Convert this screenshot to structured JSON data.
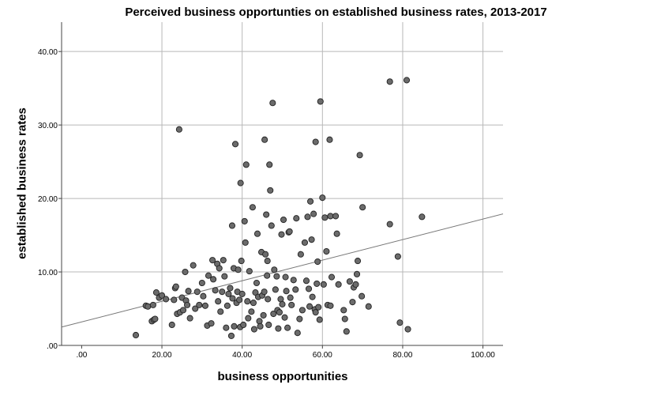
{
  "chart_data": {
    "type": "scatter",
    "title": "Perceived business opportunties on established business rates, 2013-2017",
    "xlabel": "business opportunities",
    "ylabel": "established business rates",
    "xlim": [
      -5,
      105
    ],
    "ylim": [
      0,
      44
    ],
    "x_ticks": [
      ".00",
      "20.00",
      "40.00",
      "60.00",
      "80.00",
      "100.00"
    ],
    "x_tick_values": [
      0,
      20,
      40,
      60,
      80,
      100
    ],
    "y_ticks": [
      ".00",
      "10.00",
      "20.00",
      "30.00",
      "40.00"
    ],
    "y_tick_values": [
      0,
      10,
      20,
      30,
      40
    ],
    "grid": true,
    "fit_line": {
      "x": [
        -5,
        105
      ],
      "y": [
        2.5,
        17.9
      ]
    },
    "point_color": "#6b6b6b",
    "points": [
      [
        13.5,
        1.4
      ],
      [
        16,
        5.4
      ],
      [
        16.5,
        5.3
      ],
      [
        17.5,
        3.3
      ],
      [
        18,
        3.5
      ],
      [
        18.3,
        3.6
      ],
      [
        17.8,
        5.5
      ],
      [
        18.6,
        7.2
      ],
      [
        19.3,
        6.5
      ],
      [
        20,
        6.8
      ],
      [
        21,
        6.3
      ],
      [
        22.5,
        2.8
      ],
      [
        23,
        6.2
      ],
      [
        23.3,
        7.8
      ],
      [
        23.5,
        8
      ],
      [
        23.8,
        4.3
      ],
      [
        24.3,
        29.4
      ],
      [
        24.5,
        4.5
      ],
      [
        25,
        6.5
      ],
      [
        25.3,
        4.8
      ],
      [
        25.8,
        10
      ],
      [
        26,
        6.1
      ],
      [
        26.3,
        5.5
      ],
      [
        26.6,
        7.4
      ],
      [
        27,
        3.7
      ],
      [
        27.8,
        10.9
      ],
      [
        28.3,
        5
      ],
      [
        28.8,
        7.3
      ],
      [
        29.3,
        5.5
      ],
      [
        30,
        8.5
      ],
      [
        30.3,
        6.7
      ],
      [
        30.8,
        5.4
      ],
      [
        31.3,
        2.7
      ],
      [
        31.6,
        9.5
      ],
      [
        32.3,
        3
      ],
      [
        32.6,
        11.6
      ],
      [
        32.8,
        9
      ],
      [
        33.3,
        7.5
      ],
      [
        33.8,
        11.1
      ],
      [
        34,
        6
      ],
      [
        34.3,
        10.5
      ],
      [
        34.6,
        4.6
      ],
      [
        35,
        7.3
      ],
      [
        35.3,
        11.6
      ],
      [
        35.6,
        9.4
      ],
      [
        36,
        2.4
      ],
      [
        36.3,
        5.4
      ],
      [
        36.6,
        7
      ],
      [
        37,
        7.8
      ],
      [
        37.3,
        1.3
      ],
      [
        37.6,
        6.4
      ],
      [
        37.5,
        16.3
      ],
      [
        37.9,
        10.5
      ],
      [
        38,
        2.6
      ],
      [
        38.3,
        27.4
      ],
      [
        38.6,
        5.8
      ],
      [
        38.8,
        7.3
      ],
      [
        39,
        10.3
      ],
      [
        39.3,
        6.2
      ],
      [
        39.5,
        2.5
      ],
      [
        39.8,
        11.5
      ],
      [
        39.6,
        22.1
      ],
      [
        40,
        7
      ],
      [
        40.3,
        2.8
      ],
      [
        40.6,
        16.9
      ],
      [
        40.8,
        14
      ],
      [
        41,
        24.6
      ],
      [
        41.3,
        6
      ],
      [
        41.5,
        3.7
      ],
      [
        41.8,
        10.1
      ],
      [
        42.3,
        4.6
      ],
      [
        42.6,
        18.8
      ],
      [
        42.8,
        5.8
      ],
      [
        43,
        2.2
      ],
      [
        43.3,
        7.2
      ],
      [
        43.6,
        8.5
      ],
      [
        43.8,
        15.2
      ],
      [
        44,
        6.6
      ],
      [
        44.3,
        3.3
      ],
      [
        44.5,
        2.6
      ],
      [
        44.8,
        12.7
      ],
      [
        45,
        6.8
      ],
      [
        45.3,
        4.1
      ],
      [
        45.5,
        7.3
      ],
      [
        45.6,
        28
      ],
      [
        45.8,
        12.4
      ],
      [
        46,
        17.8
      ],
      [
        46.2,
        9.5
      ],
      [
        46.3,
        11.5
      ],
      [
        46.4,
        6.3
      ],
      [
        46.6,
        2.8
      ],
      [
        46.8,
        24.6
      ],
      [
        47,
        21.1
      ],
      [
        47.3,
        16.3
      ],
      [
        47.6,
        33
      ],
      [
        47.8,
        4.3
      ],
      [
        48,
        10.3
      ],
      [
        48.3,
        7.6
      ],
      [
        48.6,
        9.4
      ],
      [
        48.8,
        4.8
      ],
      [
        49,
        2.3
      ],
      [
        49.3,
        4.5
      ],
      [
        49.6,
        6.3
      ],
      [
        49.8,
        15.1
      ],
      [
        50,
        5.6
      ],
      [
        50.3,
        17.1
      ],
      [
        50.6,
        3.8
      ],
      [
        50.8,
        9.3
      ],
      [
        51,
        7.4
      ],
      [
        51.3,
        2.4
      ],
      [
        51.6,
        15.4
      ],
      [
        51.8,
        15.5
      ],
      [
        52,
        6.5
      ],
      [
        52.3,
        5.5
      ],
      [
        52.8,
        8.9
      ],
      [
        53.3,
        7.6
      ],
      [
        53.5,
        17.3
      ],
      [
        53.8,
        1.7
      ],
      [
        54.3,
        3.6
      ],
      [
        54.6,
        12.4
      ],
      [
        55,
        4.8
      ],
      [
        55.6,
        14
      ],
      [
        56,
        8.8
      ],
      [
        56.3,
        17.5
      ],
      [
        56.6,
        7.7
      ],
      [
        56.8,
        5.3
      ],
      [
        57,
        19.6
      ],
      [
        57.3,
        14.4
      ],
      [
        57.5,
        6.6
      ],
      [
        57.8,
        17.9
      ],
      [
        58.1,
        4.9
      ],
      [
        58.3,
        4.5
      ],
      [
        58.6,
        8.4
      ],
      [
        58.3,
        27.7
      ],
      [
        58.8,
        11.4
      ],
      [
        59,
        5.2
      ],
      [
        59.3,
        3.5
      ],
      [
        59.5,
        33.2
      ],
      [
        60,
        20.1
      ],
      [
        60.3,
        8.3
      ],
      [
        60.6,
        17.4
      ],
      [
        61,
        12.8
      ],
      [
        61.3,
        5.5
      ],
      [
        61.8,
        28
      ],
      [
        62,
        5.4
      ],
      [
        62.3,
        9.3
      ],
      [
        62,
        17.6
      ],
      [
        63.3,
        17.6
      ],
      [
        63.6,
        15.2
      ],
      [
        64,
        8.3
      ],
      [
        65.3,
        4.8
      ],
      [
        65.6,
        3.6
      ],
      [
        66,
        1.9
      ],
      [
        66.8,
        8.7
      ],
      [
        67.5,
        5.9
      ],
      [
        67.8,
        7.9
      ],
      [
        68.3,
        8.3
      ],
      [
        68.6,
        9.7
      ],
      [
        68.8,
        11.5
      ],
      [
        69.3,
        25.9
      ],
      [
        69.8,
        6.7
      ],
      [
        70,
        18.8
      ],
      [
        71.5,
        5.3
      ],
      [
        76.8,
        16.5
      ],
      [
        76.8,
        35.9
      ],
      [
        78.8,
        12.1
      ],
      [
        79.3,
        3.1
      ],
      [
        81,
        36.1
      ],
      [
        81.3,
        2.2
      ],
      [
        84.8,
        17.5
      ]
    ]
  }
}
